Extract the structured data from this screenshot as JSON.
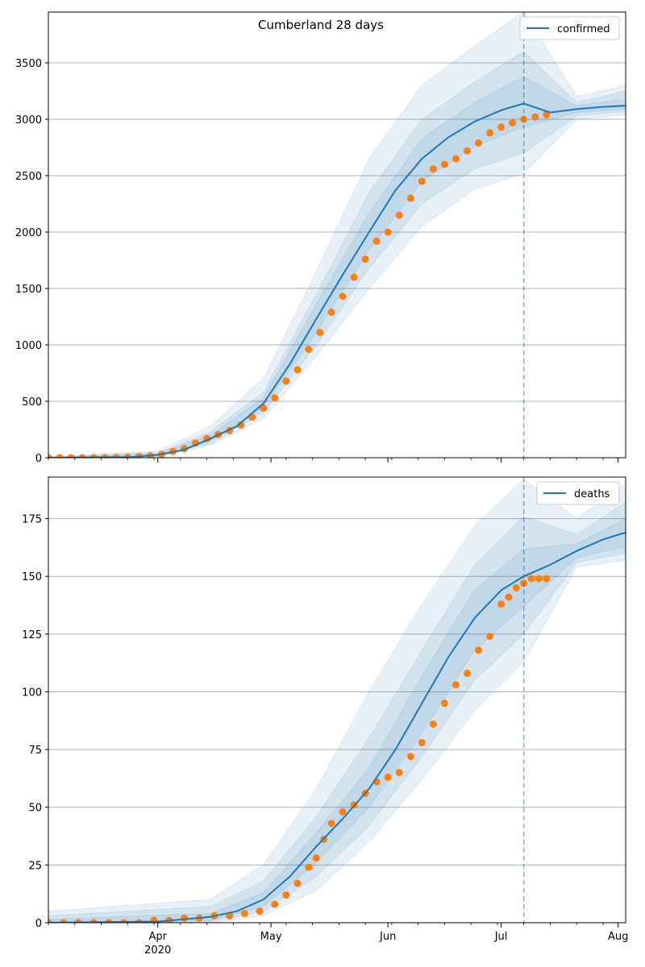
{
  "figure": {
    "suptitle": "Cumberland 28 days"
  },
  "colors": {
    "line": "#1f77b4",
    "points": "#ff7f0e",
    "band": "#1f77b4",
    "grid": "#b0b0b0"
  },
  "x_axis": {
    "range": [
      "2020-03-03",
      "2020-08-03"
    ],
    "ticks": [
      {
        "date": "2020-04-01",
        "label": "Apr",
        "sublabel": "2020"
      },
      {
        "date": "2020-05-01",
        "label": "May",
        "sublabel": ""
      },
      {
        "date": "2020-06-01",
        "label": "Jun",
        "sublabel": ""
      },
      {
        "date": "2020-07-01",
        "label": "Jul",
        "sublabel": ""
      },
      {
        "date": "2020-08-01",
        "label": "Aug",
        "sublabel": ""
      }
    ],
    "forecast_start": "2020-07-07"
  },
  "chart_data": [
    {
      "type": "line",
      "legend": "confirmed",
      "legend_position": "top-right",
      "ylim": [
        0,
        3950
      ],
      "yticks": [
        0,
        500,
        1000,
        1500,
        2000,
        2500,
        3000,
        3500
      ],
      "grid": "horizontal",
      "fit": [
        [
          "2020-03-03",
          0
        ],
        [
          "2020-03-25",
          5
        ],
        [
          "2020-04-01",
          25
        ],
        [
          "2020-04-08",
          70
        ],
        [
          "2020-04-15",
          170
        ],
        [
          "2020-04-22",
          280
        ],
        [
          "2020-04-29",
          480
        ],
        [
          "2020-05-06",
          830
        ],
        [
          "2020-05-13",
          1230
        ],
        [
          "2020-05-20",
          1620
        ],
        [
          "2020-05-27",
          2000
        ],
        [
          "2020-06-03",
          2370
        ],
        [
          "2020-06-10",
          2650
        ],
        [
          "2020-06-17",
          2840
        ],
        [
          "2020-06-24",
          2980
        ],
        [
          "2020-07-01",
          3080
        ],
        [
          "2020-07-07",
          3140
        ],
        [
          "2020-07-14",
          3060
        ],
        [
          "2020-07-21",
          3090
        ],
        [
          "2020-07-28",
          3110
        ],
        [
          "2020-08-03",
          3120
        ]
      ],
      "bands": [
        {
          "level": "outer",
          "lower": [
            [
              "2020-03-03",
              0
            ],
            [
              "2020-04-01",
              10
            ],
            [
              "2020-04-15",
              110
            ],
            [
              "2020-04-29",
              350
            ],
            [
              "2020-05-13",
              900
            ],
            [
              "2020-05-27",
              1500
            ],
            [
              "2020-06-10",
              2050
            ],
            [
              "2020-06-24",
              2380
            ],
            [
              "2020-07-07",
              2520
            ],
            [
              "2020-07-21",
              3000
            ],
            [
              "2020-08-03",
              3040
            ]
          ],
          "upper": [
            [
              "2020-03-03",
              10
            ],
            [
              "2020-04-01",
              60
            ],
            [
              "2020-04-15",
              280
            ],
            [
              "2020-04-29",
              700
            ],
            [
              "2020-05-13",
              1650
            ],
            [
              "2020-05-27",
              2650
            ],
            [
              "2020-06-10",
              3300
            ],
            [
              "2020-06-24",
              3650
            ],
            [
              "2020-07-07",
              3950
            ],
            [
              "2020-07-21",
              3200
            ],
            [
              "2020-08-03",
              3300
            ]
          ]
        },
        {
          "level": "middle",
          "lower": [
            [
              "2020-03-03",
              0
            ],
            [
              "2020-04-01",
              15
            ],
            [
              "2020-04-15",
              130
            ],
            [
              "2020-04-29",
              400
            ],
            [
              "2020-05-13",
              1000
            ],
            [
              "2020-05-27",
              1680
            ],
            [
              "2020-06-10",
              2250
            ],
            [
              "2020-06-24",
              2560
            ],
            [
              "2020-07-07",
              2700
            ],
            [
              "2020-07-21",
              3030
            ],
            [
              "2020-08-03",
              3070
            ]
          ],
          "upper": [
            [
              "2020-03-03",
              5
            ],
            [
              "2020-04-01",
              45
            ],
            [
              "2020-04-15",
              230
            ],
            [
              "2020-04-29",
              580
            ],
            [
              "2020-05-13",
              1450
            ],
            [
              "2020-05-27",
              2350
            ],
            [
              "2020-06-10",
              3000
            ],
            [
              "2020-06-24",
              3330
            ],
            [
              "2020-07-07",
              3600
            ],
            [
              "2020-07-21",
              3150
            ],
            [
              "2020-08-03",
              3250
            ]
          ]
        },
        {
          "level": "inner",
          "lower": [
            [
              "2020-03-03",
              0
            ],
            [
              "2020-04-01",
              20
            ],
            [
              "2020-04-15",
              150
            ],
            [
              "2020-04-29",
              440
            ],
            [
              "2020-05-13",
              1110
            ],
            [
              "2020-05-27",
              1840
            ],
            [
              "2020-06-10",
              2450
            ],
            [
              "2020-06-24",
              2760
            ],
            [
              "2020-07-07",
              2930
            ],
            [
              "2020-07-21",
              3060
            ],
            [
              "2020-08-03",
              3090
            ]
          ],
          "upper": [
            [
              "2020-03-03",
              3
            ],
            [
              "2020-04-01",
              35
            ],
            [
              "2020-04-15",
              200
            ],
            [
              "2020-04-29",
              530
            ],
            [
              "2020-05-13",
              1360
            ],
            [
              "2020-05-27",
              2170
            ],
            [
              "2020-06-10",
              2830
            ],
            [
              "2020-06-24",
              3150
            ],
            [
              "2020-07-07",
              3380
            ],
            [
              "2020-07-21",
              3120
            ],
            [
              "2020-08-03",
              3180
            ]
          ]
        }
      ],
      "observed": [
        [
          "2020-03-03",
          0
        ],
        [
          "2020-03-06",
          0
        ],
        [
          "2020-03-09",
          0
        ],
        [
          "2020-03-12",
          0
        ],
        [
          "2020-03-15",
          0
        ],
        [
          "2020-03-18",
          1
        ],
        [
          "2020-03-21",
          2
        ],
        [
          "2020-03-24",
          5
        ],
        [
          "2020-03-27",
          10
        ],
        [
          "2020-03-30",
          18
        ],
        [
          "2020-04-02",
          30
        ],
        [
          "2020-04-05",
          55
        ],
        [
          "2020-04-08",
          80
        ],
        [
          "2020-04-11",
          130
        ],
        [
          "2020-04-14",
          170
        ],
        [
          "2020-04-17",
          205
        ],
        [
          "2020-04-20",
          240
        ],
        [
          "2020-04-23",
          290
        ],
        [
          "2020-04-26",
          360
        ],
        [
          "2020-04-29",
          440
        ],
        [
          "2020-05-02",
          530
        ],
        [
          "2020-05-05",
          680
        ],
        [
          "2020-05-08",
          780
        ],
        [
          "2020-05-11",
          960
        ],
        [
          "2020-05-14",
          1110
        ],
        [
          "2020-05-17",
          1290
        ],
        [
          "2020-05-20",
          1430
        ],
        [
          "2020-05-23",
          1600
        ],
        [
          "2020-05-26",
          1760
        ],
        [
          "2020-05-29",
          1920
        ],
        [
          "2020-06-01",
          2000
        ],
        [
          "2020-06-04",
          2150
        ],
        [
          "2020-06-07",
          2300
        ],
        [
          "2020-06-10",
          2450
        ],
        [
          "2020-06-13",
          2560
        ],
        [
          "2020-06-16",
          2600
        ],
        [
          "2020-06-19",
          2650
        ],
        [
          "2020-06-22",
          2720
        ],
        [
          "2020-06-25",
          2790
        ],
        [
          "2020-06-28",
          2880
        ],
        [
          "2020-07-01",
          2930
        ],
        [
          "2020-07-04",
          2970
        ],
        [
          "2020-07-07",
          3000
        ],
        [
          "2020-07-10",
          3020
        ],
        [
          "2020-07-13",
          3040
        ]
      ]
    },
    {
      "type": "line",
      "legend": "deaths",
      "legend_position": "top-right",
      "ylim": [
        0,
        193
      ],
      "yticks": [
        0,
        25,
        50,
        75,
        100,
        125,
        150,
        175
      ],
      "grid": "horizontal",
      "fit": [
        [
          "2020-03-03",
          0
        ],
        [
          "2020-04-01",
          0.5
        ],
        [
          "2020-04-15",
          2.5
        ],
        [
          "2020-04-22",
          5
        ],
        [
          "2020-04-29",
          10
        ],
        [
          "2020-05-06",
          20
        ],
        [
          "2020-05-13",
          33
        ],
        [
          "2020-05-20",
          45
        ],
        [
          "2020-05-27",
          58
        ],
        [
          "2020-06-03",
          75
        ],
        [
          "2020-06-10",
          95
        ],
        [
          "2020-06-17",
          115
        ],
        [
          "2020-06-24",
          132
        ],
        [
          "2020-07-01",
          144
        ],
        [
          "2020-07-07",
          150
        ],
        [
          "2020-07-14",
          155
        ],
        [
          "2020-07-21",
          161
        ],
        [
          "2020-07-28",
          166
        ],
        [
          "2020-08-03",
          169
        ]
      ],
      "bands": [
        {
          "level": "outer",
          "lower": [
            [
              "2020-03-03",
              0
            ],
            [
              "2020-04-15",
              0
            ],
            [
              "2020-04-29",
              3
            ],
            [
              "2020-05-13",
              14
            ],
            [
              "2020-05-27",
              35
            ],
            [
              "2020-06-10",
              62
            ],
            [
              "2020-06-24",
              92
            ],
            [
              "2020-07-07",
              113
            ],
            [
              "2020-07-21",
              154
            ],
            [
              "2020-08-03",
              157
            ]
          ],
          "upper": [
            [
              "2020-03-03",
              5
            ],
            [
              "2020-04-15",
              10
            ],
            [
              "2020-04-29",
              25
            ],
            [
              "2020-05-13",
              58
            ],
            [
              "2020-05-27",
              100
            ],
            [
              "2020-06-10",
              138
            ],
            [
              "2020-06-24",
              172
            ],
            [
              "2020-07-07",
              192
            ],
            [
              "2020-07-21",
              175
            ],
            [
              "2020-08-03",
              190
            ]
          ]
        },
        {
          "level": "middle",
          "lower": [
            [
              "2020-03-03",
              0
            ],
            [
              "2020-04-15",
              0.5
            ],
            [
              "2020-04-29",
              5
            ],
            [
              "2020-05-13",
              20
            ],
            [
              "2020-05-27",
              42
            ],
            [
              "2020-06-10",
              72
            ],
            [
              "2020-06-24",
              105
            ],
            [
              "2020-07-07",
              125
            ],
            [
              "2020-07-21",
              156
            ],
            [
              "2020-08-03",
              160
            ]
          ],
          "upper": [
            [
              "2020-03-03",
              3
            ],
            [
              "2020-04-15",
              7
            ],
            [
              "2020-04-29",
              18
            ],
            [
              "2020-05-13",
              46
            ],
            [
              "2020-05-27",
              80
            ],
            [
              "2020-06-10",
              118
            ],
            [
              "2020-06-24",
              155
            ],
            [
              "2020-07-07",
              176
            ],
            [
              "2020-07-21",
              168
            ],
            [
              "2020-08-03",
              182
            ]
          ]
        },
        {
          "level": "inner",
          "lower": [
            [
              "2020-03-03",
              0
            ],
            [
              "2020-04-15",
              1
            ],
            [
              "2020-04-29",
              7
            ],
            [
              "2020-05-13",
              26
            ],
            [
              "2020-05-27",
              50
            ],
            [
              "2020-06-10",
              82
            ],
            [
              "2020-06-24",
              118
            ],
            [
              "2020-07-07",
              137
            ],
            [
              "2020-07-21",
              158
            ],
            [
              "2020-08-03",
              163
            ]
          ],
          "upper": [
            [
              "2020-03-03",
              1.5
            ],
            [
              "2020-04-15",
              4
            ],
            [
              "2020-04-29",
              13
            ],
            [
              "2020-05-13",
              39
            ],
            [
              "2020-05-27",
              67
            ],
            [
              "2020-06-10",
              107
            ],
            [
              "2020-06-24",
              144
            ],
            [
              "2020-07-07",
              162
            ],
            [
              "2020-07-21",
              164
            ],
            [
              "2020-08-03",
              175
            ]
          ]
        }
      ],
      "observed": [
        [
          "2020-03-03",
          0
        ],
        [
          "2020-03-07",
          0
        ],
        [
          "2020-03-11",
          0
        ],
        [
          "2020-03-15",
          0
        ],
        [
          "2020-03-19",
          0
        ],
        [
          "2020-03-23",
          0
        ],
        [
          "2020-03-27",
          0
        ],
        [
          "2020-03-31",
          1
        ],
        [
          "2020-04-04",
          1
        ],
        [
          "2020-04-08",
          2
        ],
        [
          "2020-04-12",
          2
        ],
        [
          "2020-04-16",
          3
        ],
        [
          "2020-04-20",
          3
        ],
        [
          "2020-04-24",
          4
        ],
        [
          "2020-04-28",
          5
        ],
        [
          "2020-05-02",
          8
        ],
        [
          "2020-05-05",
          12
        ],
        [
          "2020-05-08",
          17
        ],
        [
          "2020-05-11",
          24
        ],
        [
          "2020-05-13",
          28
        ],
        [
          "2020-05-15",
          36
        ],
        [
          "2020-05-17",
          43
        ],
        [
          "2020-05-20",
          48
        ],
        [
          "2020-05-23",
          51
        ],
        [
          "2020-05-26",
          56
        ],
        [
          "2020-05-29",
          61
        ],
        [
          "2020-06-01",
          63
        ],
        [
          "2020-06-04",
          65
        ],
        [
          "2020-06-07",
          72
        ],
        [
          "2020-06-10",
          78
        ],
        [
          "2020-06-13",
          86
        ],
        [
          "2020-06-16",
          95
        ],
        [
          "2020-06-19",
          103
        ],
        [
          "2020-06-22",
          108
        ],
        [
          "2020-06-25",
          118
        ],
        [
          "2020-06-28",
          124
        ],
        [
          "2020-07-01",
          138
        ],
        [
          "2020-07-03",
          141
        ],
        [
          "2020-07-05",
          145
        ],
        [
          "2020-07-07",
          147
        ],
        [
          "2020-07-09",
          149
        ],
        [
          "2020-07-11",
          149
        ],
        [
          "2020-07-13",
          149
        ]
      ]
    }
  ]
}
